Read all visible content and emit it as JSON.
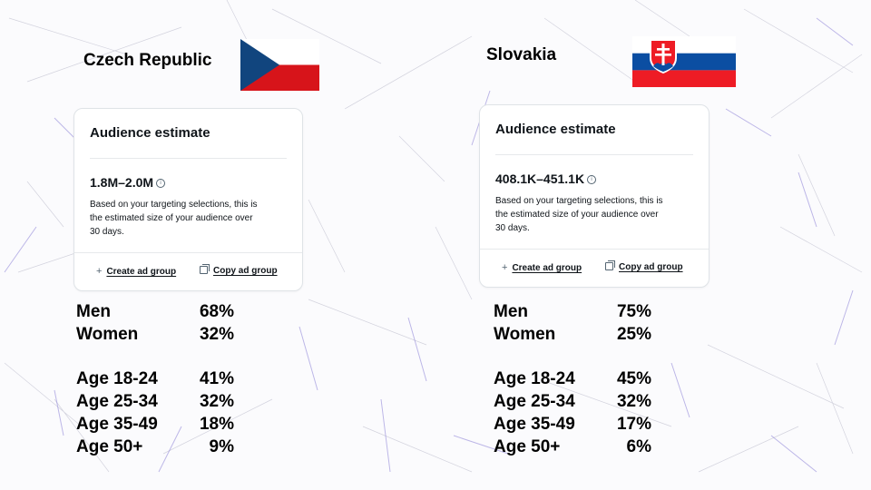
{
  "panels": [
    {
      "country": "Czech Republic",
      "flag_icon": "czech-flag-icon",
      "card": {
        "title": "Audience estimate",
        "range": "1.8M–2.0M",
        "description": "Based on your targeting selections, this is the estimated size of your audience over 30 days.",
        "create_label": "Create ad group",
        "copy_label": "Copy ad group"
      },
      "gender": [
        {
          "label": "Men",
          "value": "68%"
        },
        {
          "label": "Women",
          "value": "32%"
        }
      ],
      "age": [
        {
          "label": "Age 18-24",
          "value": "41%"
        },
        {
          "label": "Age 25-34",
          "value": "32%"
        },
        {
          "label": "Age 35-49",
          "value": "18%"
        },
        {
          "label": "Age 50+",
          "value": "9%"
        }
      ]
    },
    {
      "country": "Slovakia",
      "flag_icon": "slovak-flag-icon",
      "card": {
        "title": "Audience estimate",
        "range": "408.1K–451.1K",
        "description": "Based on your targeting selections, this is the estimated size of your audience over 30 days.",
        "create_label": "Create ad group",
        "copy_label": "Copy ad group"
      },
      "gender": [
        {
          "label": "Men",
          "value": "75%"
        },
        {
          "label": "Women",
          "value": "25%"
        }
      ],
      "age": [
        {
          "label": "Age 18-24",
          "value": "45%"
        },
        {
          "label": "Age 25-34",
          "value": "32%"
        },
        {
          "label": "Age 35-49",
          "value": "17%"
        },
        {
          "label": "Age 50+",
          "value": "6%"
        }
      ]
    }
  ],
  "colors": {
    "czech_blue": "#11457e",
    "czech_red": "#d7141a",
    "slovak_blue": "#0b4ea2",
    "slovak_red": "#ee1c25",
    "texture_purple": "#8a7fd6"
  }
}
